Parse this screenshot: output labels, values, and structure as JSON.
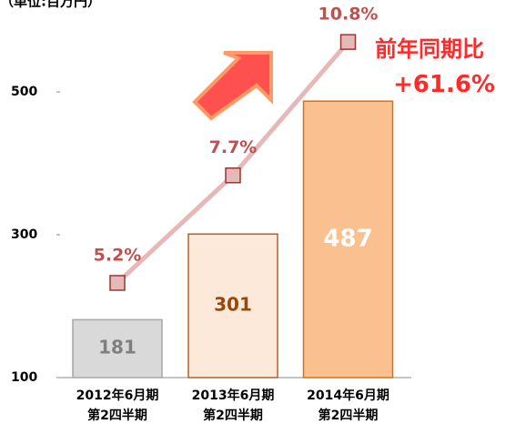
{
  "chart_data": {
    "type": "bar",
    "subtitle": "（単位:百万円）",
    "categories": [
      "2012年6月期\n第2四半期",
      "2013年6月期\n第2四半期",
      "2014年6月期\n第2四半期"
    ],
    "ylim": [
      100,
      600
    ],
    "yticks": [
      100,
      300,
      500
    ],
    "y2lim": [
      3,
      11.3
    ],
    "series": [
      {
        "type": "bar",
        "values": [
          181,
          301,
          487
        ],
        "colors": [
          "#d9d9d9",
          "#fde9d9",
          "#fac090"
        ],
        "strokes": [
          "#a6a6a6",
          "#b45f2a",
          "#e46c0a"
        ],
        "label_colors": [
          "#7f7f7f",
          "#984807",
          "#ffffff"
        ]
      },
      {
        "type": "line",
        "axis": "y2",
        "values": [
          5.2,
          7.7,
          10.8
        ],
        "value_labels": [
          "5.2%",
          "7.7%",
          "10.8%"
        ],
        "color": "#e6b9b8",
        "marker_stroke": "#953735",
        "label_color": "#c0504d"
      }
    ],
    "annotations": [
      "前年同期比",
      "+61.6%"
    ]
  }
}
